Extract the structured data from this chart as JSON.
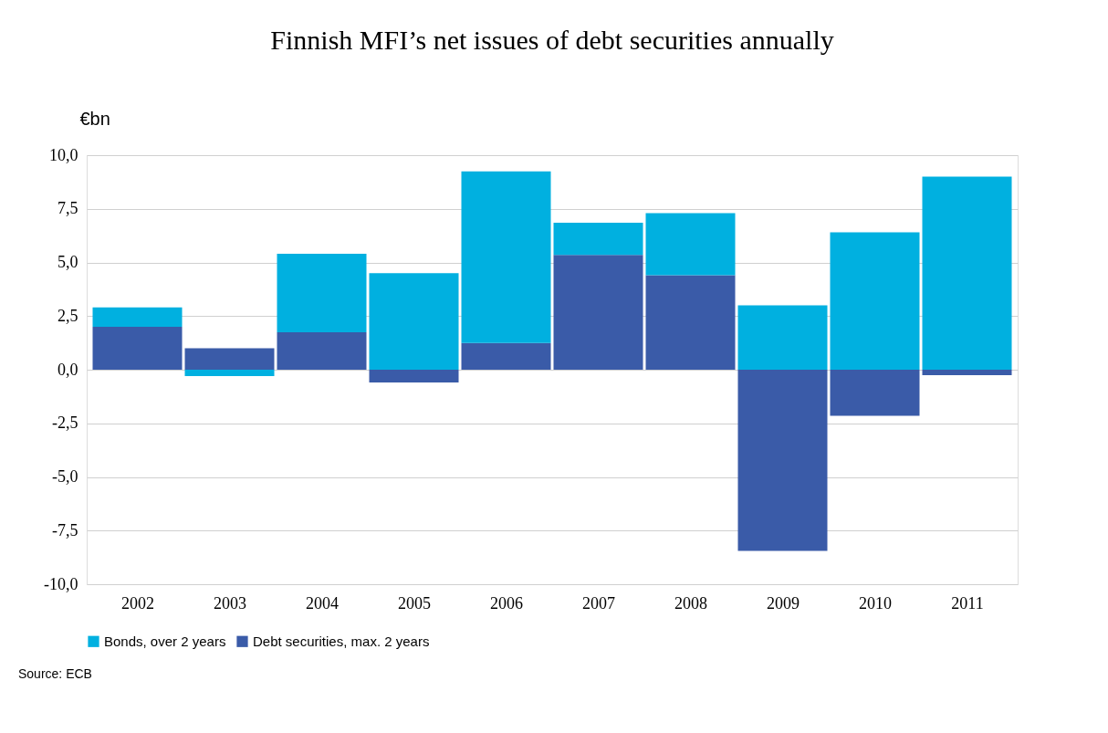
{
  "chart_data": {
    "type": "bar",
    "title": "Finnish MFI’s net issues of debt securities annually",
    "ylabel": "€bn",
    "stacked": true,
    "categories": [
      "2002",
      "2003",
      "2004",
      "2005",
      "2006",
      "2007",
      "2008",
      "2009",
      "2010",
      "2011"
    ],
    "series": [
      {
        "name": "Debt securities, max. 2 years",
        "color": "#3a5ba8",
        "values": [
          2.0,
          1.0,
          1.75,
          -0.6,
          1.25,
          5.35,
          4.4,
          -8.45,
          -2.15,
          -0.25
        ]
      },
      {
        "name": "Bonds, over 2 years",
        "color": "#00b0e0",
        "values": [
          0.9,
          -0.3,
          3.65,
          4.5,
          8.0,
          1.5,
          2.9,
          3.0,
          6.4,
          9.0
        ]
      }
    ],
    "ylim": [
      -10,
      10
    ],
    "yticks": [
      {
        "value": -10,
        "label": "-10,0"
      },
      {
        "value": -7.5,
        "label": "-7,5"
      },
      {
        "value": -5,
        "label": "-5,0"
      },
      {
        "value": -2.5,
        "label": "-2,5"
      },
      {
        "value": 0,
        "label": "0,0"
      },
      {
        "value": 2.5,
        "label": "2,5"
      },
      {
        "value": 5,
        "label": "5,0"
      },
      {
        "value": 7.5,
        "label": "7,5"
      },
      {
        "value": 10,
        "label": "10,0"
      }
    ],
    "grid": "y",
    "legend": "bottom left",
    "annotations": [
      "Source: ECB"
    ]
  }
}
